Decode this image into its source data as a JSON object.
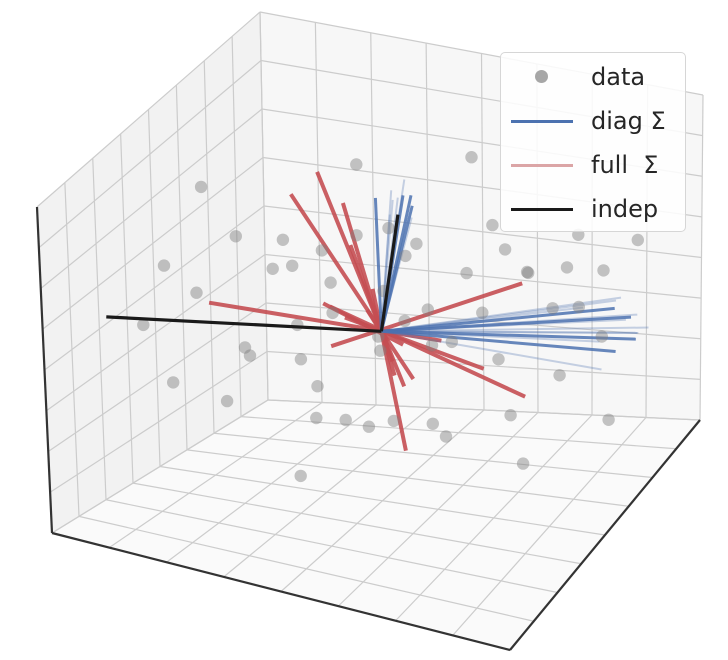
{
  "chart_data": {
    "type": "scatter",
    "projection": "3d",
    "grid": true,
    "background_panes": true,
    "legend_placement": "top-right",
    "colors": {
      "data": "#7f7f7f",
      "diag": "#4c72b0",
      "full": "#c44e52",
      "indep": "#1a1a1a",
      "grid": "#cccccc",
      "pane": "#f7f7f7"
    },
    "legend": [
      {
        "label": "data",
        "marker": "circle",
        "color": "#8a8a8a"
      },
      {
        "label": "diag Σ",
        "marker": "line",
        "color": "#4c72b0"
      },
      {
        "label": "full  Σ",
        "marker": "line",
        "color": "#dba5a6"
      },
      {
        "label": "indep",
        "marker": "line",
        "color": "#1a1a1a"
      }
    ],
    "center": [
      0,
      0,
      0
    ],
    "series": [
      {
        "name": "data",
        "type": "scatter",
        "points": [
          [
            -1.9,
            -1.5,
            0.3
          ],
          [
            -1.8,
            -1.2,
            0.9
          ],
          [
            -1.6,
            -0.9,
            0.5
          ],
          [
            -1.5,
            -1.7,
            -0.2
          ],
          [
            -1.3,
            -0.6,
            1.1
          ],
          [
            -1.2,
            -1.1,
            -0.6
          ],
          [
            -1.0,
            -0.4,
            0.7
          ],
          [
            -0.9,
            -1.3,
            0.2
          ],
          [
            -0.8,
            -0.2,
            -0.4
          ],
          [
            -0.7,
            -0.8,
            1.3
          ],
          [
            -0.6,
            0.1,
            0.4
          ],
          [
            -0.5,
            -0.5,
            -0.9
          ],
          [
            -0.4,
            0.3,
            0.9
          ],
          [
            -0.3,
            -0.9,
            -0.3
          ],
          [
            -0.2,
            0.5,
            0.2
          ],
          [
            -0.1,
            -0.1,
            -1.1
          ],
          [
            0.0,
            0.6,
            0.6
          ],
          [
            0.1,
            -0.3,
            0.1
          ],
          [
            0.2,
            0.8,
            -0.5
          ],
          [
            0.3,
            0.2,
            1.0
          ],
          [
            0.4,
            -0.6,
            -0.7
          ],
          [
            0.5,
            1.0,
            0.3
          ],
          [
            0.6,
            0.4,
            -0.2
          ],
          [
            0.7,
            1.2,
            0.8
          ],
          [
            0.8,
            -0.2,
            -1.0
          ],
          [
            0.9,
            0.9,
            -0.6
          ],
          [
            1.0,
            1.4,
            0.2
          ],
          [
            1.1,
            0.6,
            0.9
          ],
          [
            1.2,
            1.6,
            -0.3
          ],
          [
            1.3,
            0.3,
            -0.9
          ],
          [
            1.4,
            1.8,
            0.5
          ],
          [
            1.5,
            1.1,
            -0.8
          ],
          [
            1.6,
            2.0,
            0.0
          ],
          [
            1.7,
            0.8,
            0.7
          ],
          [
            1.8,
            1.5,
            -0.5
          ],
          [
            1.9,
            2.2,
            0.3
          ],
          [
            -1.7,
            0.5,
            -0.8
          ],
          [
            -1.4,
            0.9,
            0.1
          ],
          [
            -1.1,
            1.2,
            -0.5
          ],
          [
            -0.6,
            1.5,
            0.4
          ],
          [
            0.2,
            1.8,
            1.2
          ],
          [
            0.6,
            -1.4,
            0.6
          ],
          [
            1.0,
            -1.0,
            -0.4
          ],
          [
            1.4,
            -0.7,
            0.9
          ],
          [
            -0.2,
            -1.6,
            0.8
          ],
          [
            0.4,
            -1.8,
            -0.1
          ],
          [
            0.9,
            -1.5,
            1.1
          ],
          [
            1.7,
            -0.3,
            -1.1
          ],
          [
            -1.0,
            1.6,
            1.0
          ],
          [
            -0.4,
            2.0,
            -0.7
          ],
          [
            2.0,
            0.4,
            0.5
          ],
          [
            2.1,
            1.0,
            -1.2
          ],
          [
            -2.0,
            0.1,
            1.2
          ],
          [
            -1.5,
            1.8,
            -0.1
          ],
          [
            0.0,
            -2.0,
            -0.8
          ],
          [
            0.7,
            2.1,
            -0.2
          ]
        ]
      },
      {
        "name": "diag Σ",
        "type": "direction_lines",
        "note_sampled_directions": 24,
        "directions": [
          [
            2.0,
            1.8,
            -0.4
          ],
          [
            1.9,
            1.9,
            -0.5
          ],
          [
            1.8,
            2.0,
            -0.3
          ],
          [
            2.1,
            1.7,
            -0.6
          ],
          [
            1.7,
            2.1,
            -0.4
          ],
          [
            2.0,
            2.0,
            -0.7
          ],
          [
            1.9,
            1.6,
            -0.2
          ],
          [
            2.2,
            1.8,
            -0.5
          ],
          [
            0.1,
            0.2,
            1.5
          ],
          [
            0.2,
            0.1,
            1.6
          ],
          [
            0.0,
            0.3,
            1.4
          ],
          [
            0.15,
            0.25,
            1.7
          ],
          [
            -0.1,
            0.1,
            1.5
          ],
          [
            0.25,
            0.2,
            1.3
          ],
          [
            0.05,
            0.15,
            1.6
          ],
          [
            0.2,
            0.3,
            1.5
          ],
          [
            1.6,
            1.9,
            -0.8
          ],
          [
            1.8,
            1.5,
            -0.9
          ],
          [
            2.0,
            1.4,
            -0.6
          ],
          [
            1.5,
            1.7,
            -0.3
          ],
          [
            0.1,
            0.0,
            1.4
          ],
          [
            0.3,
            0.1,
            1.5
          ],
          [
            1.9,
            2.2,
            -0.6
          ],
          [
            2.2,
            1.5,
            -0.4
          ]
        ]
      },
      {
        "name": "full  Σ",
        "type": "direction_lines",
        "directions": [
          [
            -1.4,
            0.9,
            0.9
          ],
          [
            -1.2,
            1.1,
            1.1
          ],
          [
            -1.8,
            -0.2,
            0.05
          ],
          [
            1.2,
            0.9,
            -1.0
          ],
          [
            0.9,
            1.5,
            0.0
          ],
          [
            -0.7,
            0.8,
            0.5
          ],
          [
            -1.3,
            1.4,
            -0.5
          ],
          [
            -0.9,
            1.6,
            -0.6
          ],
          [
            0.6,
            1.2,
            -0.9
          ],
          [
            0.4,
            -0.3,
            -1.2
          ],
          [
            -0.5,
            0.2,
            1.3
          ]
        ]
      },
      {
        "name": "indep",
        "type": "direction_lines",
        "directions": [
          [
            -2.2,
            -1.7,
            0.4
          ],
          [
            0.1,
            0.2,
            1.3
          ]
        ]
      }
    ],
    "axis_ranges": {
      "x": [
        -2.5,
        2.5
      ],
      "y": [
        -2.5,
        2.5
      ],
      "z": [
        -2.0,
        2.0
      ]
    },
    "title": "",
    "xlabel": "",
    "ylabel": "",
    "zlabel": ""
  }
}
